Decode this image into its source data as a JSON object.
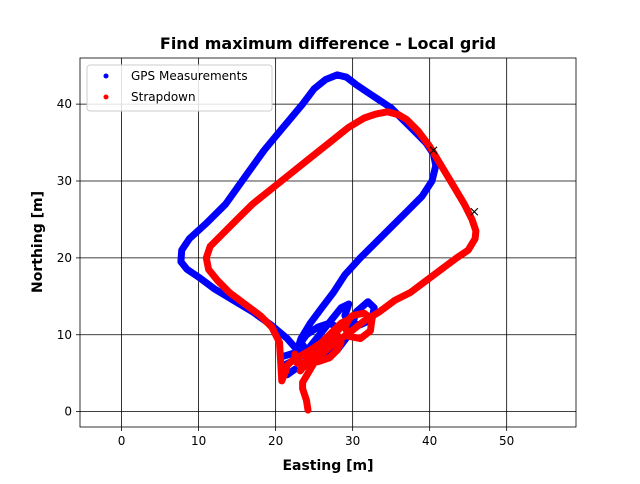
{
  "chart_data": {
    "type": "line",
    "title": "Find maximum difference - Local grid",
    "xlabel": "Easting [m]",
    "ylabel": "Northing [m]",
    "xlim": [
      -5.4,
      59.0
    ],
    "ylim": [
      -2.0,
      46.0
    ],
    "xticks": [
      0,
      10,
      20,
      30,
      40,
      50
    ],
    "yticks": [
      0,
      10,
      20,
      30,
      40
    ],
    "grid": true,
    "legend": {
      "placement": "top-left",
      "entries": [
        "GPS Measurements",
        "Strapdown"
      ]
    },
    "colors": {
      "GPS Measurements": "#0000ff",
      "Strapdown": "#ff0000",
      "marker": "#000000"
    },
    "series": [
      {
        "name": "GPS Measurements",
        "marker": "dot",
        "x": [
          21.0,
          23.0,
          21.5,
          19.5,
          17.0,
          14.5,
          12.0,
          10.0,
          8.5,
          7.7,
          7.8,
          8.8,
          11.0,
          13.5,
          16.0,
          18.5,
          21.0,
          23.5,
          25.0,
          26.5,
          28.0,
          29.2,
          30.5,
          32.0,
          33.5,
          35.0,
          36.5,
          38.0,
          39.5,
          40.5,
          40.8,
          40.3,
          39.0,
          37.0,
          35.0,
          33.0,
          31.0,
          29.0,
          27.5,
          26.0,
          24.5,
          23.3,
          22.8,
          23.5,
          25.0,
          26.5,
          27.7,
          28.0,
          27.0,
          25.5,
          24.0,
          23.3,
          24.0,
          26.0,
          28.0,
          29.5,
          30.5,
          32.0,
          32.8,
          32.5,
          31.0,
          29.5,
          29.0,
          29.5,
          28.5,
          26.5,
          24.5,
          23.0,
          22.0,
          21.0,
          20.8,
          21.5,
          22.5
        ],
        "y": [
          7.2,
          7.8,
          9.5,
          11.2,
          13.0,
          14.5,
          16.0,
          17.5,
          18.5,
          19.5,
          21.0,
          22.5,
          24.5,
          27.0,
          30.5,
          34.0,
          37.0,
          40.0,
          42.0,
          43.2,
          43.8,
          43.5,
          42.5,
          41.5,
          40.5,
          39.5,
          38.0,
          36.5,
          35.0,
          33.5,
          32.0,
          30.0,
          28.0,
          26.0,
          24.0,
          22.0,
          20.0,
          17.8,
          15.5,
          13.5,
          11.5,
          9.5,
          8.0,
          7.3,
          7.2,
          8.0,
          9.5,
          11.0,
          11.5,
          11.0,
          10.0,
          9.0,
          8.0,
          7.3,
          8.0,
          10.0,
          13.0,
          14.3,
          13.5,
          12.0,
          11.3,
          11.5,
          12.5,
          14.0,
          13.5,
          11.0,
          8.5,
          7.0,
          6.5,
          6.0,
          5.2,
          4.8,
          5.5
        ]
      },
      {
        "name": "Strapdown",
        "marker": "dot",
        "x": [
          24.2,
          24.0,
          23.5,
          23.5,
          24.5,
          26.0,
          28.0,
          30.0,
          31.5,
          32.5,
          32.3,
          31.0,
          29.5,
          29.0,
          29.5,
          28.5,
          27.5,
          26.0,
          24.5,
          23.3,
          22.5,
          22.0,
          21.5,
          21.3,
          21.0,
          20.8,
          20.5,
          19.5,
          18.0,
          16.0,
          14.0,
          12.5,
          11.3,
          11.0,
          11.5,
          13.0,
          15.0,
          17.0,
          19.5,
          22.0,
          24.5,
          27.0,
          29.5,
          31.5,
          33.0,
          34.5,
          36.0,
          37.0,
          38.5,
          40.0,
          41.5,
          43.0,
          44.5,
          45.5,
          46.0,
          45.9,
          45.0,
          43.5,
          41.5,
          39.5,
          37.5,
          35.5,
          33.5,
          31.5,
          29.5,
          27.5,
          26.0,
          24.5,
          23.5,
          23.2,
          23.5,
          24.5,
          26.5,
          28.0,
          28.5,
          28.0,
          27.0,
          25.5,
          24.0,
          22.8,
          22.5,
          22.5
        ],
        "y": [
          0.2,
          1.5,
          3.0,
          3.8,
          5.5,
          8.0,
          10.5,
          12.5,
          12.8,
          12.0,
          10.5,
          9.5,
          9.8,
          11.0,
          12.0,
          11.5,
          10.5,
          9.0,
          8.0,
          7.3,
          6.8,
          6.5,
          6.0,
          5.2,
          4.5,
          4.0,
          9.0,
          11.0,
          12.5,
          14.0,
          15.5,
          17.0,
          18.5,
          20.0,
          21.5,
          23.0,
          25.0,
          27.0,
          29.0,
          31.0,
          33.0,
          35.0,
          37.0,
          38.2,
          38.7,
          39.0,
          38.6,
          38.0,
          36.5,
          34.5,
          32.0,
          29.5,
          27.0,
          25.0,
          23.5,
          22.5,
          21.0,
          20.0,
          18.5,
          17.0,
          15.5,
          14.5,
          13.0,
          11.8,
          10.2,
          8.8,
          7.5,
          6.5,
          5.7,
          5.3,
          6.0,
          7.5,
          9.5,
          10.0,
          9.0,
          8.0,
          7.0,
          6.5,
          6.3,
          6.3,
          7.0,
          7.5
        ]
      }
    ],
    "markers": [
      {
        "x": 40.5,
        "y": 34.0,
        "symbol": "x"
      },
      {
        "x": 45.8,
        "y": 26.0,
        "symbol": "x"
      }
    ]
  }
}
